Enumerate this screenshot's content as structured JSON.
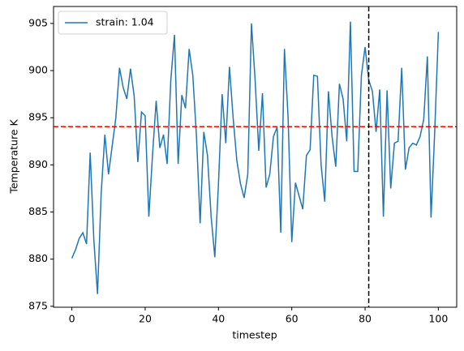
{
  "chart_data": {
    "type": "line",
    "xlabel": "timestep",
    "ylabel": "Temperature K",
    "x": [
      0,
      1,
      2,
      3,
      4,
      5,
      6,
      7,
      8,
      9,
      10,
      11,
      12,
      13,
      14,
      15,
      16,
      17,
      18,
      19,
      20,
      21,
      22,
      23,
      24,
      25,
      26,
      27,
      28,
      29,
      30,
      31,
      32,
      33,
      34,
      35,
      36,
      37,
      38,
      39,
      40,
      41,
      42,
      43,
      44,
      45,
      46,
      47,
      48,
      49,
      50,
      51,
      52,
      53,
      54,
      55,
      56,
      57,
      58,
      59,
      60,
      61,
      62,
      63,
      64,
      65,
      66,
      67,
      68,
      69,
      70,
      71,
      72,
      73,
      74,
      75,
      76,
      77,
      78,
      79,
      80,
      81,
      82,
      83,
      84,
      85,
      86,
      87,
      88,
      89,
      90,
      91,
      92,
      93,
      94,
      95,
      96,
      97,
      98,
      99,
      100
    ],
    "series": [
      {
        "name": "strain: 1.04",
        "color": "#1f77b4",
        "values": [
          880.1,
          881,
          882.2,
          882.8,
          881.6,
          891.3,
          882,
          876.3,
          887,
          893.2,
          889,
          892,
          895,
          900.3,
          898.2,
          897,
          900.2,
          897.3,
          890.3,
          895.6,
          895.2,
          884.5,
          891,
          896.8,
          891.8,
          893.2,
          890.1,
          899,
          903.8,
          890.1,
          897.4,
          896,
          902.3,
          899.5,
          893,
          883.8,
          893.5,
          891,
          884.5,
          880.2,
          888,
          897.5,
          892.3,
          900.4,
          895,
          890.5,
          888,
          886.5,
          889,
          905,
          899,
          891.5,
          897.6,
          887.6,
          889,
          893,
          894,
          882.8,
          902.3,
          895,
          881.8,
          888.1,
          886.7,
          885.3,
          891,
          891.6,
          899.5,
          899.4,
          890,
          886.1,
          897.8,
          893,
          889.8,
          898.6,
          897,
          892.5,
          905.2,
          889.3,
          889.3,
          899.5,
          902.5,
          899,
          897.8,
          893.5,
          898,
          884.5,
          897.9,
          887.5,
          892.3,
          892.5,
          900.3,
          889.5,
          891.8,
          892.3,
          892.1,
          893,
          894.8,
          901.5,
          884.4,
          893.5,
          904.1
        ]
      }
    ],
    "xlim": [
      -5,
      105
    ],
    "ylim": [
      874.9,
      906.8
    ],
    "xticks": [
      0,
      20,
      40,
      60,
      80,
      100
    ],
    "yticks": [
      875,
      880,
      885,
      890,
      895,
      900,
      905
    ],
    "hline": {
      "value": 894.05,
      "color": "#ff0000"
    },
    "vline": {
      "value": 81,
      "color": "#000000"
    },
    "legend": "upper left"
  }
}
